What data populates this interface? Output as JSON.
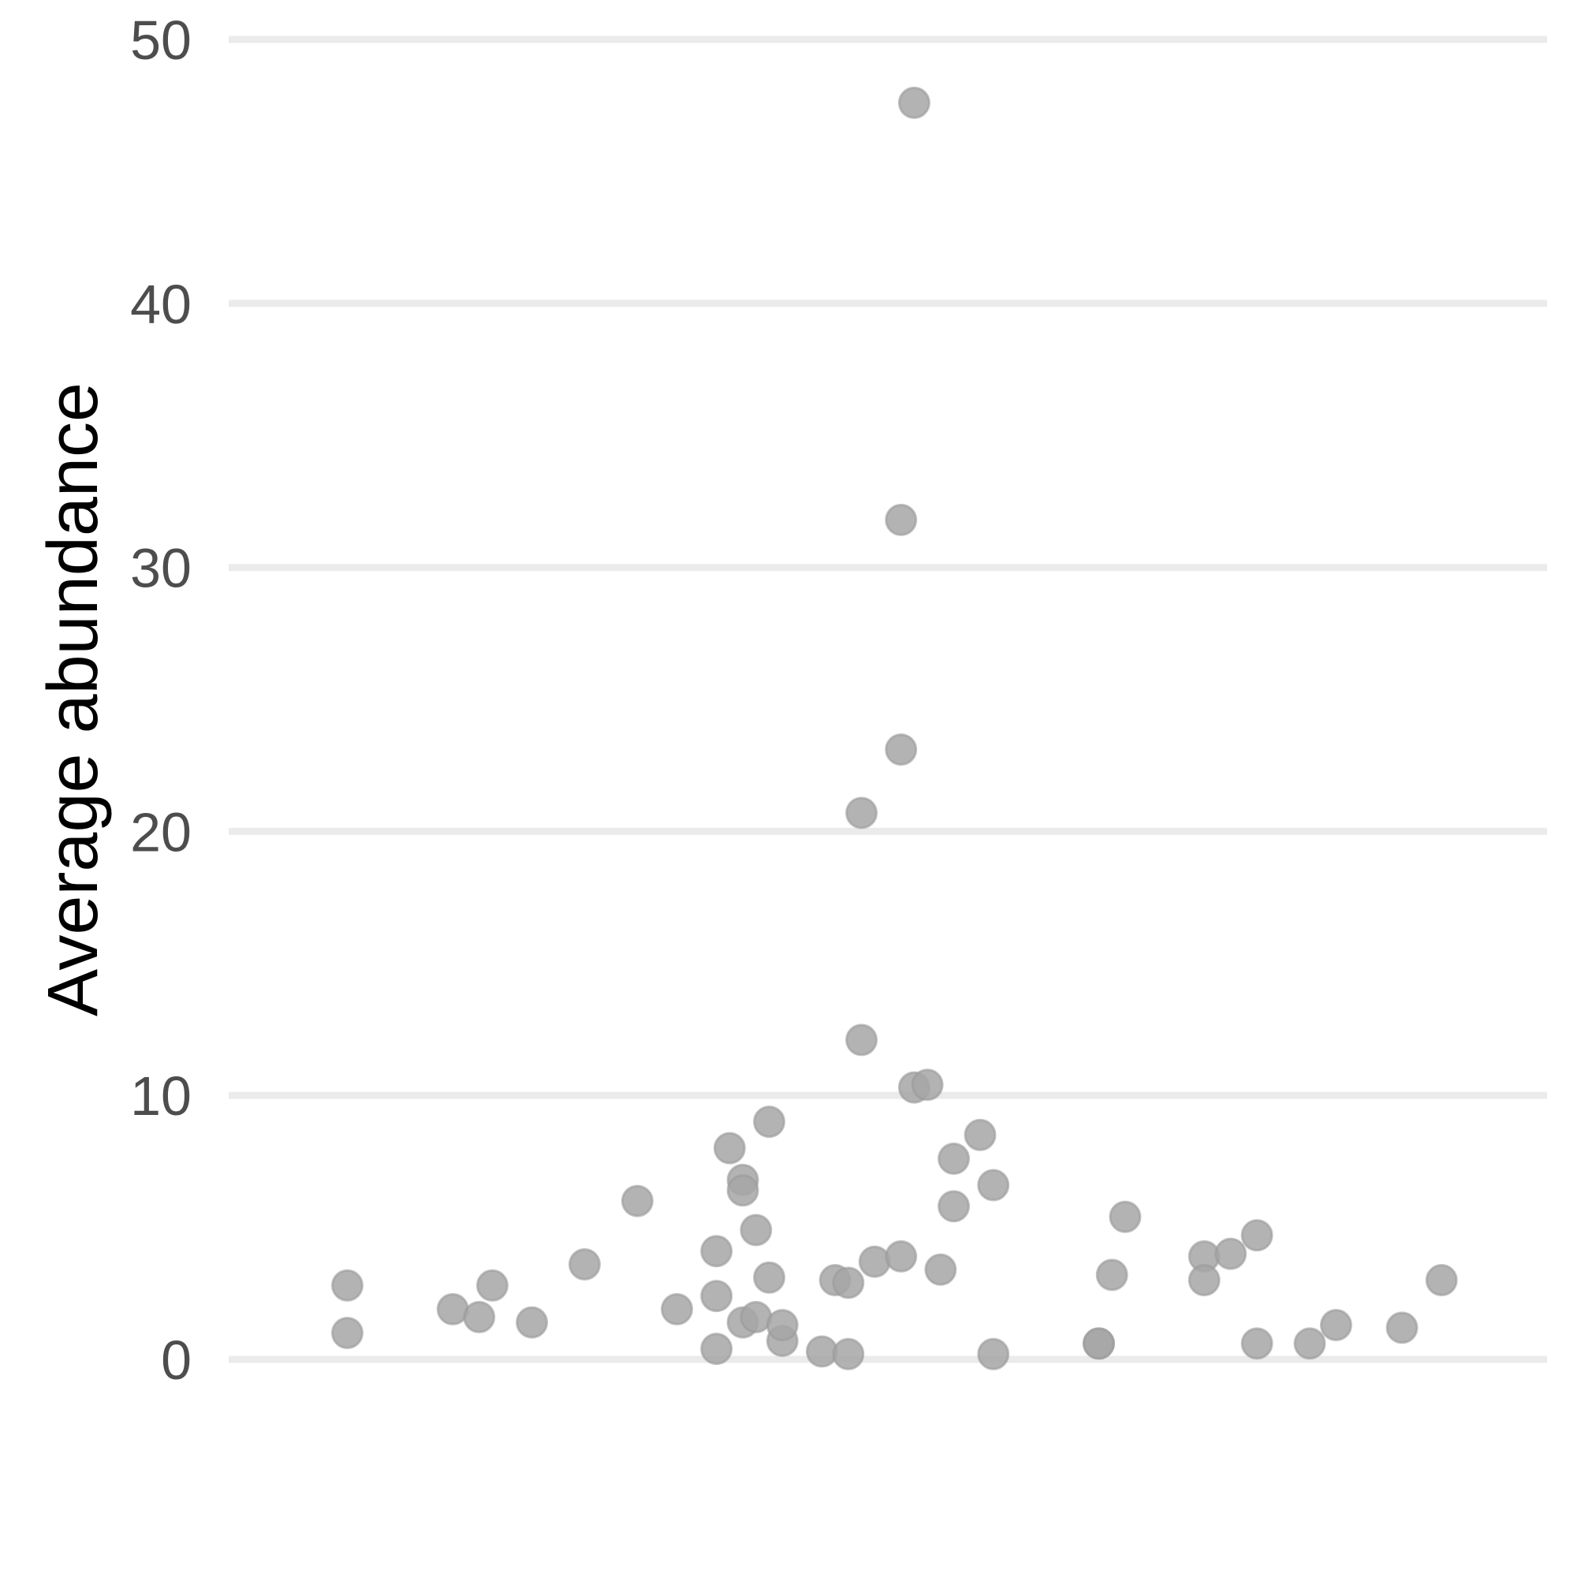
{
  "chart_data": {
    "type": "scatter",
    "title": "",
    "xlabel": "",
    "ylabel": "Average abundance",
    "ylim": [
      0,
      50
    ],
    "yticks": [
      "0",
      "10",
      "20",
      "30",
      "40",
      "50"
    ],
    "x_axis_visible": false,
    "grid": "horizontal major only",
    "point_color": "#a6a6a6",
    "series": [
      {
        "points": [
          {
            "x": 0.09,
            "y": 2.8
          },
          {
            "x": 0.09,
            "y": 1.0
          },
          {
            "x": 0.17,
            "y": 1.9
          },
          {
            "x": 0.19,
            "y": 1.6
          },
          {
            "x": 0.2,
            "y": 2.8
          },
          {
            "x": 0.23,
            "y": 1.4
          },
          {
            "x": 0.27,
            "y": 3.6
          },
          {
            "x": 0.31,
            "y": 6.0
          },
          {
            "x": 0.34,
            "y": 1.9
          },
          {
            "x": 0.37,
            "y": 0.4
          },
          {
            "x": 0.37,
            "y": 2.4
          },
          {
            "x": 0.37,
            "y": 4.1
          },
          {
            "x": 0.38,
            "y": 8.0
          },
          {
            "x": 0.39,
            "y": 6.8
          },
          {
            "x": 0.39,
            "y": 1.4
          },
          {
            "x": 0.39,
            "y": 6.4
          },
          {
            "x": 0.4,
            "y": 4.9
          },
          {
            "x": 0.4,
            "y": 1.6
          },
          {
            "x": 0.41,
            "y": 3.1
          },
          {
            "x": 0.41,
            "y": 9.0
          },
          {
            "x": 0.42,
            "y": 0.7
          },
          {
            "x": 0.42,
            "y": 1.3
          },
          {
            "x": 0.45,
            "y": 0.3
          },
          {
            "x": 0.46,
            "y": 3.0
          },
          {
            "x": 0.47,
            "y": 2.9
          },
          {
            "x": 0.47,
            "y": 0.2
          },
          {
            "x": 0.48,
            "y": 20.7
          },
          {
            "x": 0.48,
            "y": 12.1
          },
          {
            "x": 0.49,
            "y": 3.7
          },
          {
            "x": 0.51,
            "y": 31.8
          },
          {
            "x": 0.51,
            "y": 3.9
          },
          {
            "x": 0.51,
            "y": 23.1
          },
          {
            "x": 0.52,
            "y": 47.6
          },
          {
            "x": 0.52,
            "y": 10.3
          },
          {
            "x": 0.53,
            "y": 10.4
          },
          {
            "x": 0.54,
            "y": 3.4
          },
          {
            "x": 0.55,
            "y": 7.6
          },
          {
            "x": 0.55,
            "y": 5.8
          },
          {
            "x": 0.57,
            "y": 8.5
          },
          {
            "x": 0.58,
            "y": 0.2
          },
          {
            "x": 0.58,
            "y": 6.6
          },
          {
            "x": 0.66,
            "y": 0.6
          },
          {
            "x": 0.66,
            "y": 0.6
          },
          {
            "x": 0.67,
            "y": 3.2
          },
          {
            "x": 0.68,
            "y": 5.4
          },
          {
            "x": 0.74,
            "y": 3.9
          },
          {
            "x": 0.74,
            "y": 3.0
          },
          {
            "x": 0.76,
            "y": 4.0
          },
          {
            "x": 0.78,
            "y": 4.7
          },
          {
            "x": 0.78,
            "y": 0.6
          },
          {
            "x": 0.82,
            "y": 0.6
          },
          {
            "x": 0.84,
            "y": 1.3
          },
          {
            "x": 0.89,
            "y": 1.2
          },
          {
            "x": 0.92,
            "y": 3.0
          }
        ]
      }
    ]
  }
}
